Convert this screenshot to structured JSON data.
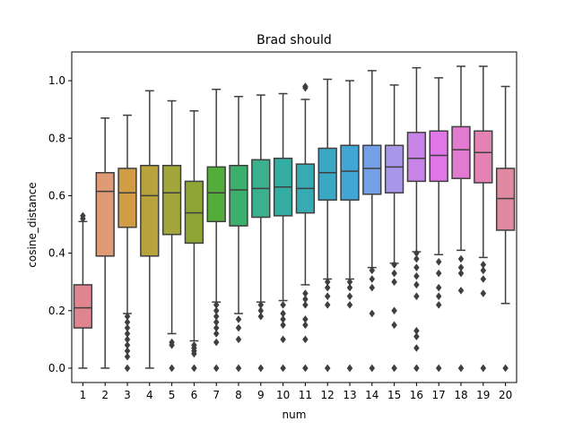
{
  "chart_data": {
    "type": "box",
    "title": "Brad should",
    "xlabel": "num",
    "ylabel": "cosine_distance",
    "ylim": [
      -0.05,
      1.1
    ],
    "yticks": [
      0.0,
      0.2,
      0.4,
      0.6,
      0.8,
      1.0
    ],
    "ytick_labels": [
      "0.0",
      "0.2",
      "0.4",
      "0.6",
      "0.8",
      "1.0"
    ],
    "categories": [
      "1",
      "2",
      "3",
      "4",
      "5",
      "6",
      "7",
      "8",
      "9",
      "10",
      "11",
      "12",
      "13",
      "14",
      "15",
      "16",
      "17",
      "18",
      "19",
      "20"
    ],
    "colors": [
      "#e0848f",
      "#e09a74",
      "#d19d44",
      "#b9a33c",
      "#a3a63b",
      "#8fa636",
      "#52ad3a",
      "#3ab06c",
      "#3ab08e",
      "#36ada2",
      "#38aab4",
      "#3ba8c3",
      "#42a6d5",
      "#74a0e8",
      "#a897e8",
      "#c883e8",
      "#e077e6",
      "#e27ad0",
      "#e582b4",
      "#df8aa0"
    ],
    "series": [
      {
        "q1": 0.14,
        "median": 0.21,
        "q3": 0.29,
        "whislo": 0.0,
        "whishi": 0.51,
        "fliers": [
          0.52,
          0.53
        ]
      },
      {
        "q1": 0.39,
        "median": 0.615,
        "q3": 0.68,
        "whislo": 0.0,
        "whishi": 0.87,
        "fliers": []
      },
      {
        "q1": 0.49,
        "median": 0.61,
        "q3": 0.695,
        "whislo": 0.19,
        "whishi": 0.88,
        "fliers": [
          0.18,
          0.16,
          0.14,
          0.12,
          0.1,
          0.08,
          0.06,
          0.04,
          0.0
        ]
      },
      {
        "q1": 0.39,
        "median": 0.6,
        "q3": 0.705,
        "whislo": 0.0,
        "whishi": 0.965,
        "fliers": []
      },
      {
        "q1": 0.465,
        "median": 0.61,
        "q3": 0.705,
        "whislo": 0.12,
        "whishi": 0.93,
        "fliers": [
          0.09,
          0.08,
          0.0
        ]
      },
      {
        "q1": 0.435,
        "median": 0.54,
        "q3": 0.65,
        "whislo": 0.095,
        "whishi": 0.895,
        "fliers": [
          0.08,
          0.07,
          0.06,
          0.05,
          0.0
        ]
      },
      {
        "q1": 0.51,
        "median": 0.61,
        "q3": 0.7,
        "whislo": 0.23,
        "whishi": 0.97,
        "fliers": [
          0.22,
          0.2,
          0.18,
          0.16,
          0.14,
          0.12,
          0.09,
          0.0
        ]
      },
      {
        "q1": 0.495,
        "median": 0.62,
        "q3": 0.705,
        "whislo": 0.19,
        "whishi": 0.945,
        "fliers": [
          0.17,
          0.14,
          0.1,
          0.0
        ]
      },
      {
        "q1": 0.525,
        "median": 0.625,
        "q3": 0.725,
        "whislo": 0.23,
        "whishi": 0.95,
        "fliers": [
          0.22,
          0.2,
          0.18,
          0.0
        ]
      },
      {
        "q1": 0.53,
        "median": 0.63,
        "q3": 0.73,
        "whislo": 0.235,
        "whishi": 0.955,
        "fliers": [
          0.22,
          0.19,
          0.17,
          0.15,
          0.1,
          0.0
        ]
      },
      {
        "q1": 0.54,
        "median": 0.625,
        "q3": 0.71,
        "whislo": 0.29,
        "whishi": 0.935,
        "fliers": [
          0.26,
          0.24,
          0.22,
          0.17,
          0.15,
          0.1,
          0.0,
          0.975,
          0.98
        ]
      },
      {
        "q1": 0.585,
        "median": 0.68,
        "q3": 0.765,
        "whislo": 0.31,
        "whishi": 1.005,
        "fliers": [
          0.3,
          0.28,
          0.25,
          0.22,
          0.0
        ]
      },
      {
        "q1": 0.585,
        "median": 0.685,
        "q3": 0.775,
        "whislo": 0.31,
        "whishi": 1.0,
        "fliers": [
          0.3,
          0.28,
          0.25,
          0.22,
          0.0
        ]
      },
      {
        "q1": 0.605,
        "median": 0.695,
        "q3": 0.775,
        "whislo": 0.35,
        "whishi": 1.035,
        "fliers": [
          0.34,
          0.31,
          0.28,
          0.19,
          0.0
        ]
      },
      {
        "q1": 0.61,
        "median": 0.7,
        "q3": 0.775,
        "whislo": 0.365,
        "whishi": 0.985,
        "fliers": [
          0.36,
          0.33,
          0.3,
          0.2,
          0.15,
          0.0
        ]
      },
      {
        "q1": 0.65,
        "median": 0.73,
        "q3": 0.82,
        "whislo": 0.405,
        "whishi": 1.045,
        "fliers": [
          0.4,
          0.38,
          0.35,
          0.32,
          0.29,
          0.25,
          0.13,
          0.11,
          0.07,
          0.0
        ]
      },
      {
        "q1": 0.65,
        "median": 0.74,
        "q3": 0.825,
        "whislo": 0.395,
        "whishi": 1.01,
        "fliers": [
          0.37,
          0.33,
          0.28,
          0.25,
          0.22,
          0.0
        ]
      },
      {
        "q1": 0.66,
        "median": 0.76,
        "q3": 0.84,
        "whislo": 0.41,
        "whishi": 1.05,
        "fliers": [
          0.38,
          0.35,
          0.33,
          0.27,
          0.0
        ]
      },
      {
        "q1": 0.645,
        "median": 0.75,
        "q3": 0.825,
        "whislo": 0.385,
        "whishi": 1.05,
        "fliers": [
          0.36,
          0.34,
          0.31,
          0.26,
          0.0
        ]
      },
      {
        "q1": 0.48,
        "median": 0.59,
        "q3": 0.695,
        "whislo": 0.225,
        "whishi": 0.98,
        "fliers": [
          0.0
        ]
      }
    ]
  }
}
